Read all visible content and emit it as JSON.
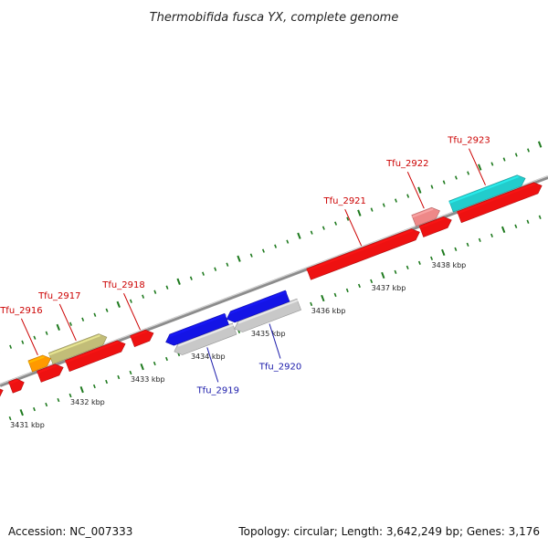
{
  "title": "Thermobifida fusca YX, complete genome",
  "footer": {
    "accession": "Accession: NC_007333",
    "summary": "Topology: circular; Length: 3,642,249 bp; Genes: 3,176"
  },
  "colors": {
    "backbone": "#8c8c8c",
    "tick": "#1e7a1e",
    "forward_label": "#cc0000",
    "reverse_label": "#1a1aaa",
    "red_gene": "#ee1111",
    "orange_gene": "#ff9900",
    "olive_gene": "#c2bd78",
    "blue_gene": "#1414e6",
    "gray_gene": "#c8c8c8",
    "pink_gene": "#ee8888",
    "cyan_gene": "#22cccc"
  },
  "scale": {
    "unit": "kbp",
    "labels": [
      "3431 kbp",
      "3432 kbp",
      "3433 kbp",
      "3434 kbp",
      "3435 kbp",
      "3436 kbp",
      "3437 kbp",
      "3438 kbp"
    ]
  },
  "genes": [
    {
      "label": "",
      "strand": "+",
      "color": "red",
      "start": 3430.45,
      "end": 3430.85
    },
    {
      "label": "",
      "strand": "+",
      "color": "red",
      "start": 3430.98,
      "end": 3431.2
    },
    {
      "label": "Tfu_2916",
      "strand": "+",
      "color": "orange",
      "start": 3431.38,
      "end": 3431.72
    },
    {
      "label": "",
      "strand": "+",
      "color": "red",
      "start": 3431.45,
      "end": 3431.85
    },
    {
      "label": "Tfu_2917",
      "strand": "+",
      "color": "olive",
      "start": 3431.72,
      "end": 3432.65
    },
    {
      "label": "",
      "strand": "+",
      "color": "red",
      "start": 3431.92,
      "end": 3432.88
    },
    {
      "label": "Tfu_2918",
      "strand": "+",
      "color": "red",
      "start": 3433.0,
      "end": 3433.35
    },
    {
      "label": "",
      "strand": "-",
      "color": "blue",
      "start": 3433.48,
      "end": 3434.49
    },
    {
      "label": "Tfu_2919",
      "strand": "-",
      "color": "gray",
      "start": 3433.55,
      "end": 3434.55
    },
    {
      "label": "",
      "strand": "-",
      "color": "blue",
      "start": 3434.49,
      "end": 3435.5
    },
    {
      "label": "Tfu_2920",
      "strand": "-",
      "color": "gray",
      "start": 3434.55,
      "end": 3435.62
    },
    {
      "label": "Tfu_2921",
      "strand": "+",
      "color": "red",
      "start": 3435.93,
      "end": 3437.77
    },
    {
      "label": "",
      "strand": "+",
      "color": "red",
      "start": 3437.8,
      "end": 3438.3
    },
    {
      "label": "Tfu_2922",
      "strand": "+",
      "color": "pink",
      "start": 3437.75,
      "end": 3438.18
    },
    {
      "label": "",
      "strand": "+",
      "color": "red",
      "start": 3438.43,
      "end": 3439.8
    },
    {
      "label": "Tfu_2923",
      "strand": "+",
      "color": "cyan",
      "start": 3438.37,
      "end": 3439.6
    }
  ]
}
